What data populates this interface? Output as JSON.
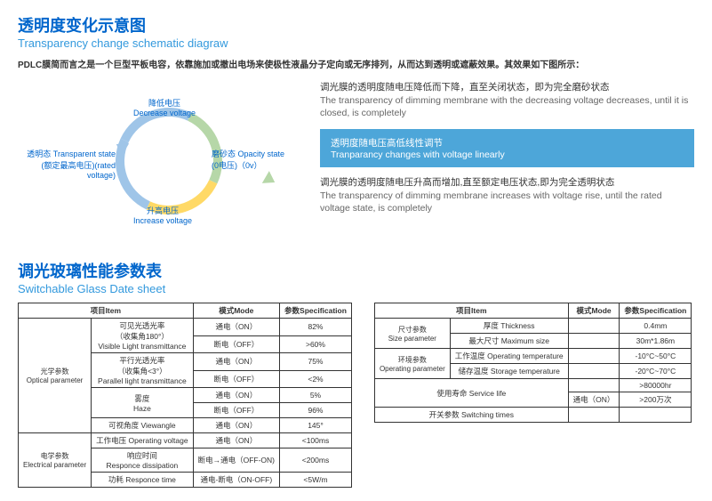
{
  "title": {
    "cn": "透明度变化示意图",
    "en": "Transparency change schematic diagraw"
  },
  "intro": "PDLC膜简而言之是一个巨型平板电容，依靠施加或撤出电场来使极性液晶分子定向或无序排列，从而达到透明或遮蔽效果。其效果如下图所示：",
  "diagram": {
    "decrease": {
      "cn": "降低电压",
      "en": "Decrease voltage"
    },
    "increase": {
      "cn": "升高电压",
      "en": "Increase voltage"
    },
    "transparent": {
      "cn": "透明态 Transparent state",
      "sub": "(额定最高电压)(rated voltage)"
    },
    "opacity": {
      "cn": "磨砂态 Opacity state",
      "sub": "(0电压)（0v）"
    }
  },
  "desc": {
    "top": {
      "cn": "调光膜的透明度随电压降低而下降，直至关闭状态，即为完全磨砂状态",
      "en": "The transparency of dimming membrane with the decreasing voltage decreases, until it is closed, is completely"
    },
    "mid": {
      "cn": "透明度随电压高低线性调节",
      "en": "Tranparancy changes with voltage linearly"
    },
    "bot": {
      "cn": "调光膜的透明度随电压升高而增加,直至额定电压状态,即为完全透明状态",
      "en": "The transparency of dimming membrane increases with voltage rise, until the rated voltage state, is completely"
    }
  },
  "title2": {
    "cn": "调光玻璃性能参数表",
    "en": "Switchable Glass Date sheet"
  },
  "t1": {
    "h": {
      "item": "项目Item",
      "mode": "模式Mode",
      "spec": "参数Specification"
    },
    "optical": {
      "label_cn": "光学参数",
      "label_en": "Optical parameter",
      "r1": {
        "name_cn": "可见光透光率",
        "name_sub": "（收集角180°）",
        "name_en": "Visible Light transmittance",
        "m1": "通电（ON）",
        "v1": "82%",
        "m2": "断电（OFF）",
        "v2": ">60%"
      },
      "r2": {
        "name_cn": "平行光透光率",
        "name_sub": "（收集角<3°）",
        "name_en": "Parallel light transmittance",
        "m1": "通电（ON）",
        "v1": "75%",
        "m2": "断电（OFF）",
        "v2": "<2%"
      },
      "r3": {
        "name_cn": "雾度",
        "name_en": "Haze",
        "m1": "通电（ON）",
        "v1": "5%",
        "m2": "断电（OFF）",
        "v2": "96%"
      },
      "r4": {
        "name_cn": "可视角度 Viewangle",
        "m1": "通电（ON）",
        "v1": "145°"
      }
    },
    "electrical": {
      "label_cn": "电学参数",
      "label_en": "Electrical parameter",
      "r1": {
        "name_cn": "工作电压 Operating voltage",
        "m1": "通电（ON）",
        "v1": "<100ms"
      },
      "r2": {
        "name_cn": "响应时间",
        "name_en": "Responce dissipation",
        "m1": "断电→通电（OFF-ON)",
        "v1": "<200ms"
      },
      "r3": {
        "name_cn": "功耗 Responce time",
        "m1": "通电-断电（ON-OFF)",
        "v1": "<5W/m"
      }
    }
  },
  "t2": {
    "h": {
      "item": "项目Item",
      "mode": "模式Mode",
      "spec": "参数Specification"
    },
    "size": {
      "label_cn": "尺寸参数",
      "label_en": "Size parameter",
      "r1": {
        "name_cn": "厚度 Thickness",
        "v1": "0.4mm"
      },
      "r2": {
        "name_cn": "最大尺寸 Maximum size",
        "v1": "30m*1.86m"
      }
    },
    "env": {
      "label_cn": "环境参数",
      "label_en": "Operating parameter",
      "r1": {
        "name_cn": "工作温度 Operating temperature",
        "v1": "-10°C~50°C"
      },
      "r2": {
        "name_cn": "储存温度 Storage temperature",
        "v1": "-20°C~70°C"
      }
    },
    "life": {
      "r1": {
        "name_cn": "使用寿命 Service life",
        "v0": ">80000hr",
        "m1": "通电（ON）",
        "v1": ">200万次"
      },
      "r2": {
        "name_cn": "开关参数 Switching times"
      }
    }
  }
}
